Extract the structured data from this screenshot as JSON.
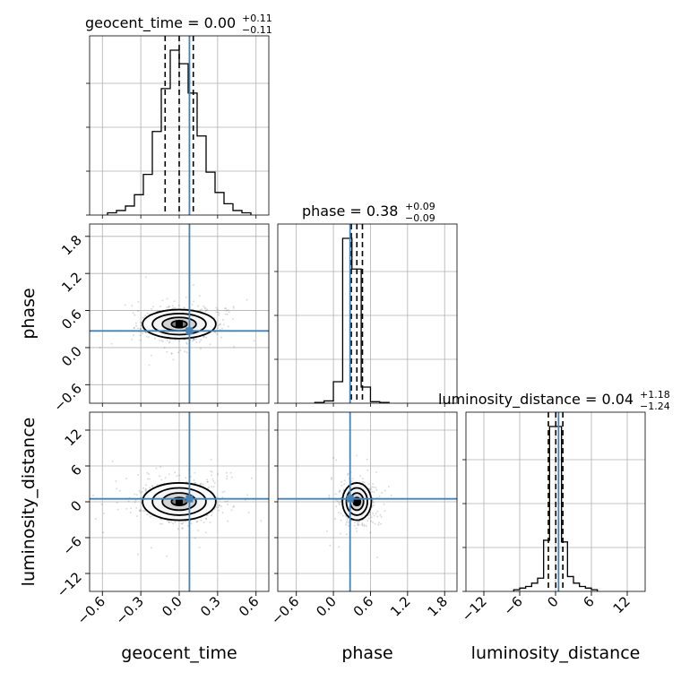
{
  "chart_data": {
    "type": "corner",
    "parameters": [
      "geocent_time",
      "phase",
      "luminosity_distance"
    ],
    "axis_labels": {
      "x": [
        "geocent_time",
        "phase",
        "luminosity_distance"
      ],
      "y": [
        "phase",
        "luminosity_distance"
      ]
    },
    "ranges": {
      "geocent_time": [
        -0.7,
        0.7
      ],
      "phase": [
        -0.9,
        2.0
      ],
      "luminosity_distance": [
        -15,
        15
      ]
    },
    "ticks": {
      "geocent_time": [
        "-0.6",
        "-0.3",
        "0.0",
        "0.3",
        "0.6"
      ],
      "phase": [
        "-0.6",
        "0.0",
        "0.6",
        "1.2",
        "1.8"
      ],
      "luminosity_distance": [
        "-12",
        "-6",
        "0",
        "6",
        "12"
      ]
    },
    "truths": {
      "geocent_time": 0.08,
      "phase": 0.27,
      "luminosity_distance": 0.5
    },
    "marginals": [
      {
        "param": "geocent_time",
        "title": {
          "text": "geocent_time = 0.00",
          "plus": "+0.11",
          "minus": "−0.11"
        },
        "quantiles": [
          -0.11,
          0.0,
          0.11
        ],
        "bins": [
          -0.56,
          -0.49,
          -0.42,
          -0.35,
          -0.28,
          -0.21,
          -0.14,
          -0.07,
          0.0,
          0.07,
          0.14,
          0.21,
          0.28,
          0.35,
          0.42,
          0.49,
          0.56
        ],
        "counts": [
          1,
          2,
          4,
          9,
          18,
          37,
          56,
          73,
          67,
          54,
          35,
          19,
          10,
          5,
          2,
          1
        ]
      },
      {
        "param": "phase",
        "title": {
          "text": "phase = 0.38",
          "plus": "+0.09",
          "minus": "−0.09"
        },
        "quantiles": [
          0.29,
          0.38,
          0.47
        ],
        "bins": [
          -0.3,
          -0.15,
          0.0,
          0.15,
          0.3,
          0.45,
          0.6,
          0.75,
          0.9
        ],
        "counts": [
          1,
          3,
          28,
          215,
          175,
          21,
          2,
          1
        ]
      },
      {
        "param": "luminosity_distance",
        "title": {
          "text": "luminosity_distance = 0.04",
          "plus": "+1.18",
          "minus": "−1.24"
        },
        "quantiles": [
          -1.2,
          0.04,
          1.22
        ],
        "bins": [
          -7,
          -6,
          -5,
          -4,
          -3,
          -2,
          -1,
          0,
          1,
          2,
          3,
          4,
          5,
          6,
          7
        ],
        "counts": [
          1,
          2,
          3,
          5,
          8,
          31,
          100,
          100,
          30,
          9,
          5,
          3,
          2,
          1
        ]
      }
    ],
    "joint": [
      {
        "x": "geocent_time",
        "y": "phase",
        "center": [
          0.0,
          0.38
        ],
        "spread": [
          0.11,
          0.09
        ]
      },
      {
        "x": "geocent_time",
        "y": "luminosity_distance",
        "center": [
          0.0,
          0.04
        ],
        "spread": [
          0.11,
          1.2
        ]
      },
      {
        "x": "phase",
        "y": "luminosity_distance",
        "center": [
          0.38,
          0.04
        ],
        "spread": [
          0.09,
          1.2
        ]
      }
    ],
    "grid": true,
    "colors": {
      "truth": "#4682b4",
      "hist": "#000000",
      "points": "#000000"
    }
  }
}
